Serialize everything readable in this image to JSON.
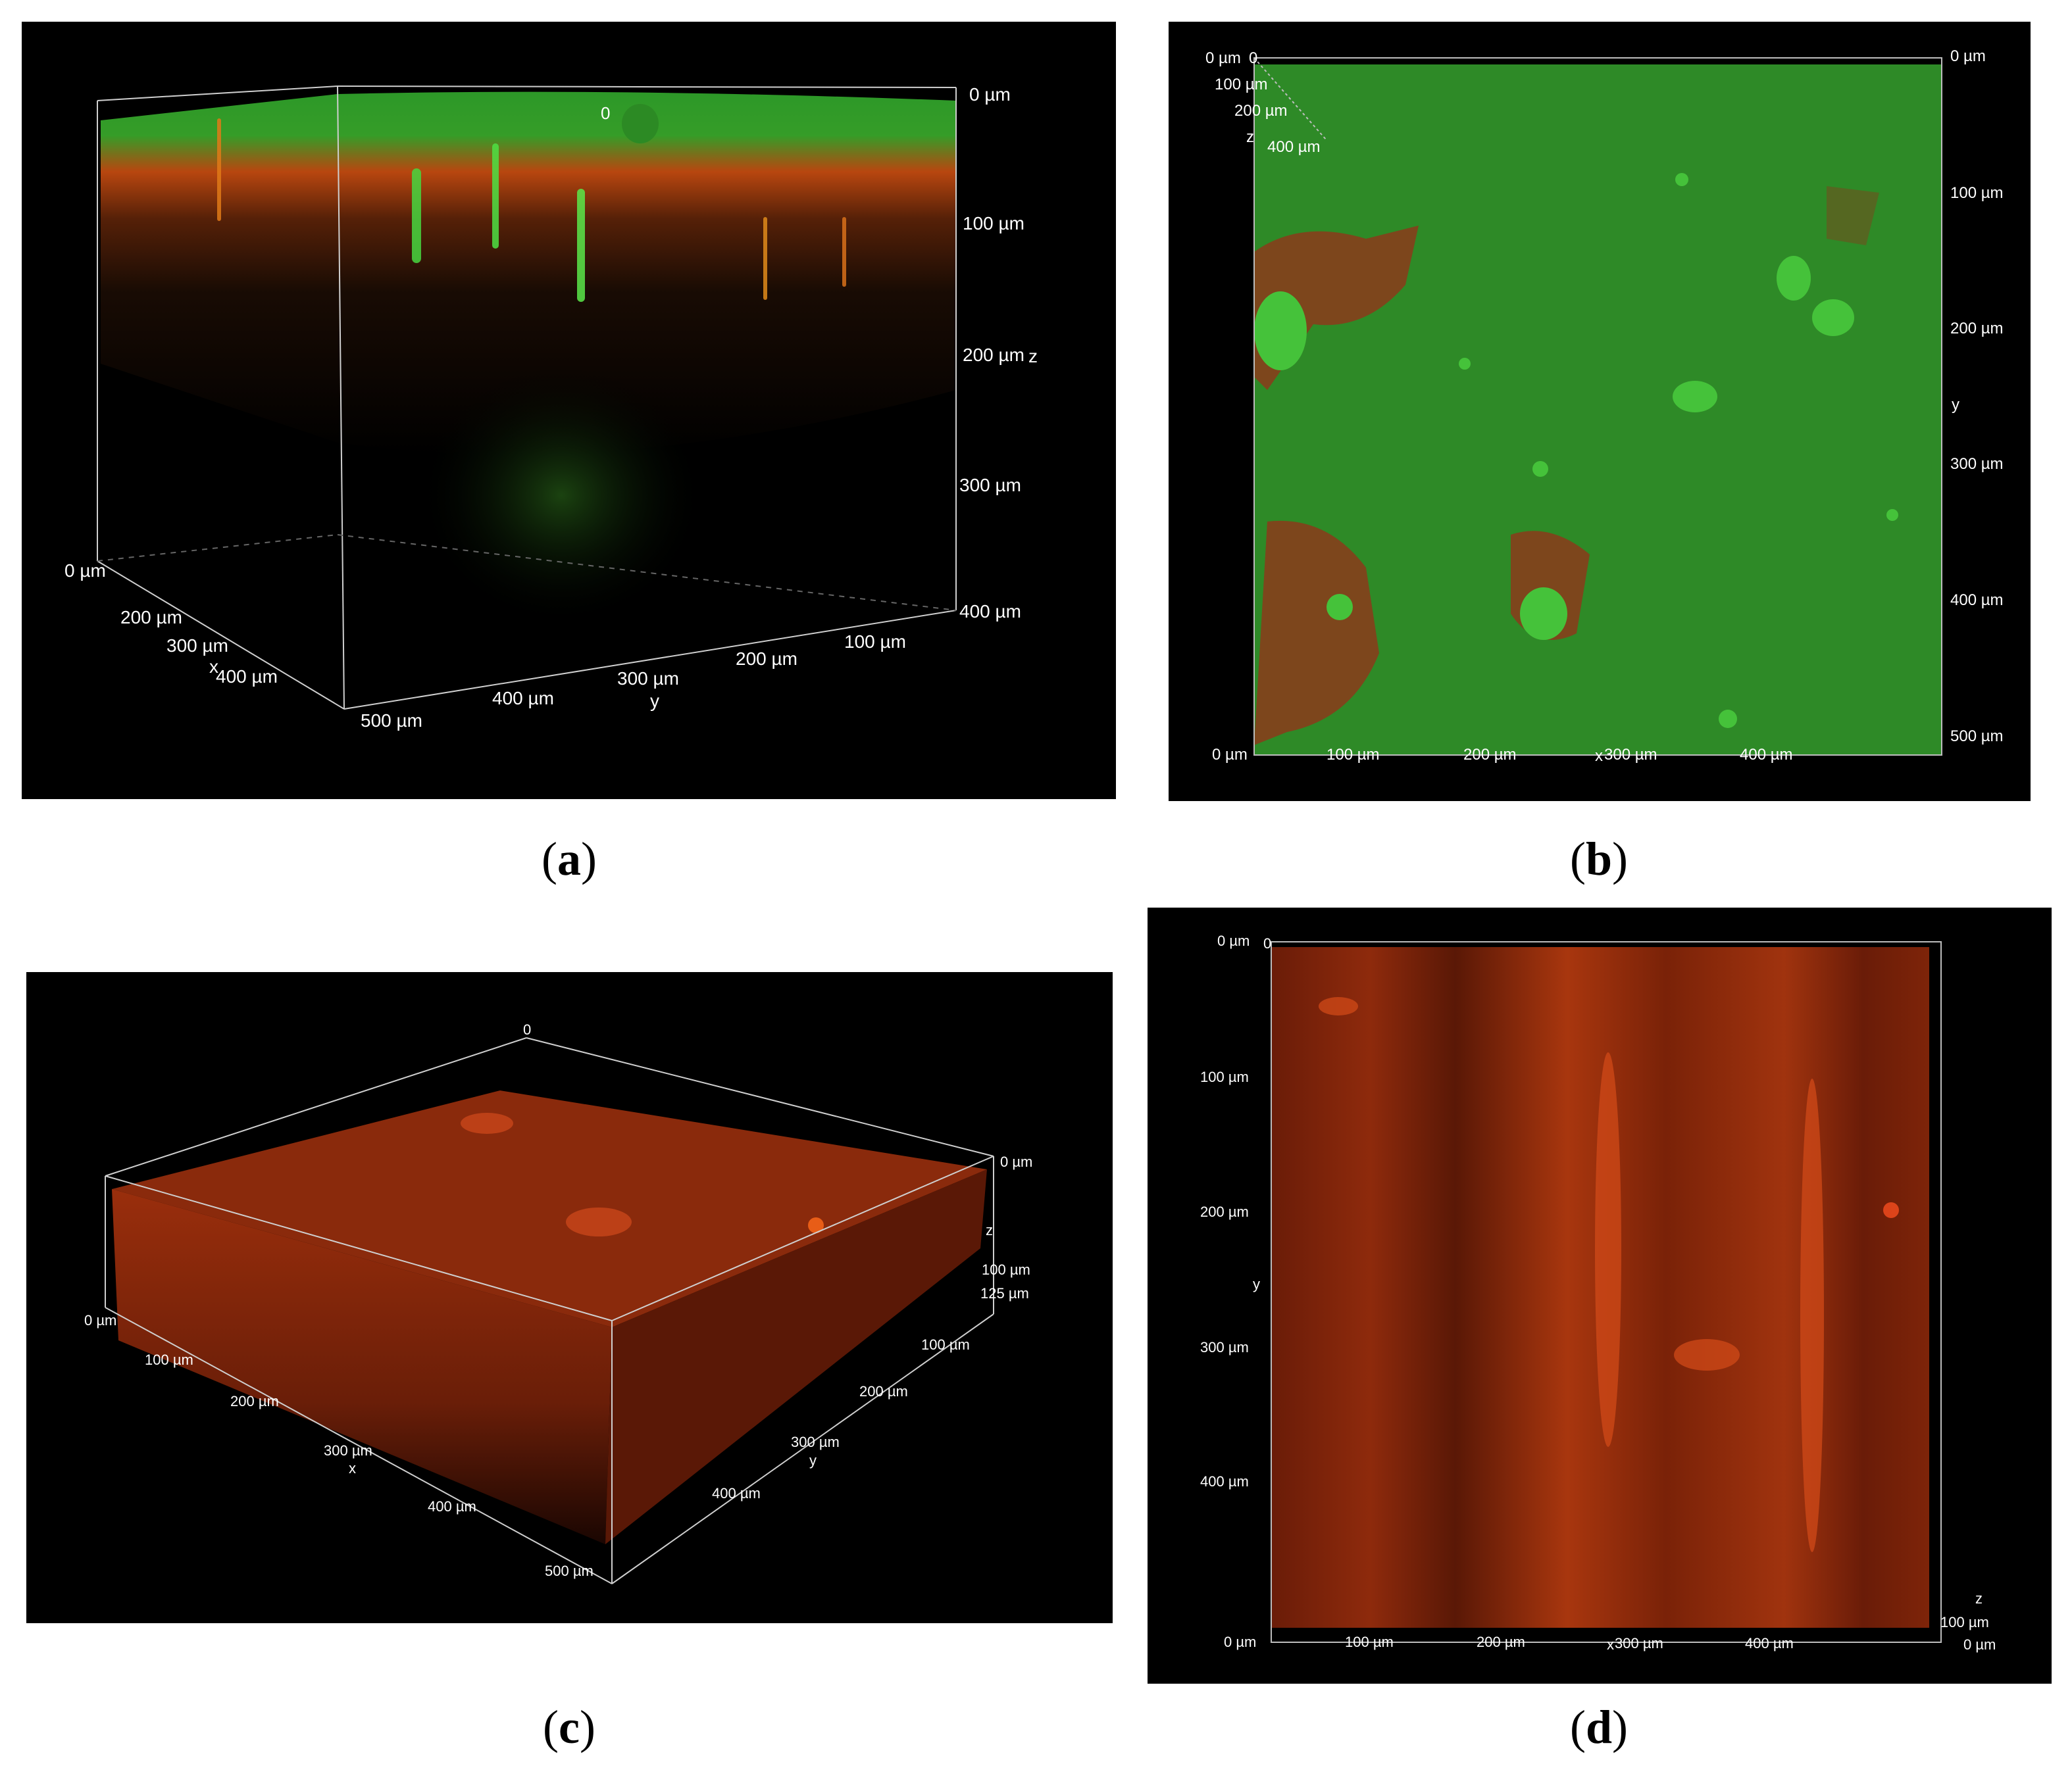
{
  "panels": {
    "a": {
      "caption_letter": "a",
      "z_ticks": [
        "0 µm",
        "100 µm",
        "200 µm",
        "300 µm",
        "400 µm"
      ],
      "z_axis": "z",
      "origin": "0",
      "x_ticks": [
        "0 µm",
        "200 µm",
        "300 µm",
        "400 µm"
      ],
      "x_axis": "x",
      "y_ticks": [
        "500 µm",
        "400 µm",
        "300 µm",
        "200 µm",
        "100 µm"
      ],
      "y_axis": "y"
    },
    "b": {
      "caption_letter": "b",
      "corner_ticks": [
        "0 µm",
        "0",
        "100 µm",
        "200 µm",
        "z",
        "400 µm"
      ],
      "y_ticks": [
        "0 µm",
        "100 µm",
        "200 µm",
        "300 µm",
        "400 µm",
        "500 µm"
      ],
      "y_axis": "y",
      "x_ticks": [
        "0 µm",
        "100 µm",
        "200 µm",
        "300 µm",
        "400 µm"
      ],
      "x_axis": "x"
    },
    "c": {
      "caption_letter": "c",
      "origin": "0",
      "z_ticks": [
        "0 µm",
        "100 µm",
        "125 µm"
      ],
      "z_axis": "z",
      "x_ticks": [
        "0 µm",
        "100 µm",
        "200 µm",
        "300 µm",
        "400 µm",
        "500 µm"
      ],
      "x_axis": "x",
      "y_ticks": [
        "100 µm",
        "200 µm",
        "300 µm",
        "400 µm"
      ],
      "y_axis": "y"
    },
    "d": {
      "caption_letter": "d",
      "y_ticks": [
        "0 µm",
        "100 µm",
        "200 µm",
        "300 µm",
        "400 µm"
      ],
      "y_axis": "y",
      "origin": "0",
      "x_ticks": [
        "0 µm",
        "100 µm",
        "200 µm",
        "300 µm",
        "400 µm"
      ],
      "x_axis": "x",
      "z_ticks": [
        "100 µm",
        "0 µm"
      ],
      "z_axis": "z"
    }
  },
  "colors": {
    "background": "#000000",
    "green_channel": "#2f9a2a",
    "red_channel": "#b8300a",
    "text": "#ffffff"
  }
}
